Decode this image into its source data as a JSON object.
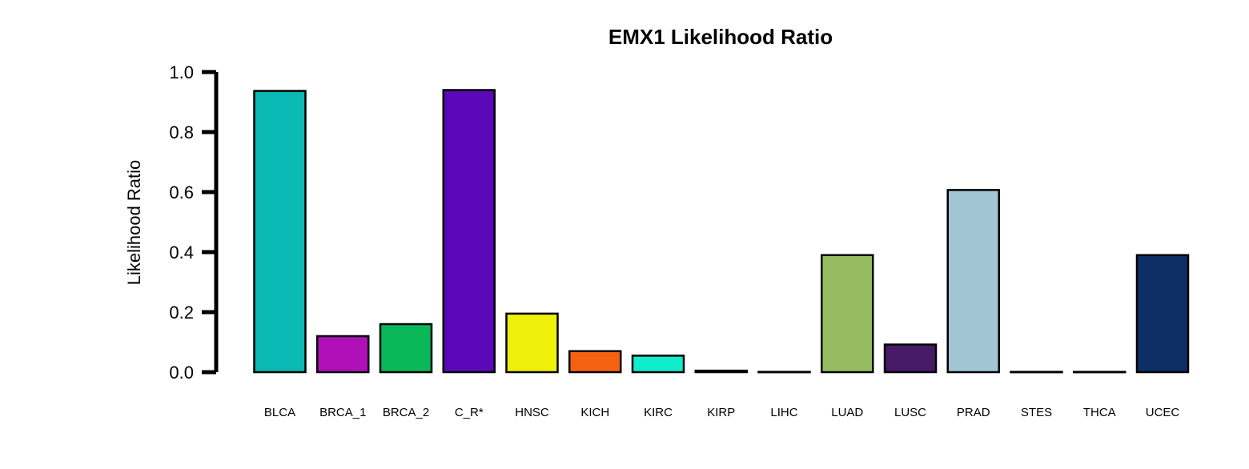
{
  "chart_data": {
    "type": "bar",
    "title": "EMX1 Likelihood Ratio",
    "xlabel": "",
    "ylabel": "Likelihood Ratio",
    "ylim": [
      0,
      1.0
    ],
    "yticks": [
      "0.0",
      "0.2",
      "0.4",
      "0.6",
      "0.8",
      "1.0"
    ],
    "grid": false,
    "legend": "none",
    "categories": [
      "BLCA",
      "BRCA_1",
      "BRCA_2",
      "C_R*",
      "HNSC",
      "KICH",
      "KIRC",
      "KIRP",
      "LIHC",
      "LUAD",
      "LUSC",
      "PRAD",
      "STES",
      "THCA",
      "UCEC"
    ],
    "values": [
      0.937,
      0.12,
      0.16,
      0.94,
      0.195,
      0.07,
      0.055,
      0.005,
      0.001,
      0.39,
      0.092,
      0.607,
      0.001,
      0.001,
      0.39
    ],
    "colors": [
      "#0ab8b4",
      "#b010b8",
      "#08b858",
      "#5a08b8",
      "#eef00c",
      "#f26210",
      "#10eccc",
      "#4a9c8c",
      "#d4c47c",
      "#96bc62",
      "#461a66",
      "#a2c5d4",
      "#6a3a6c",
      "#1a6690",
      "#0e2f66"
    ]
  }
}
